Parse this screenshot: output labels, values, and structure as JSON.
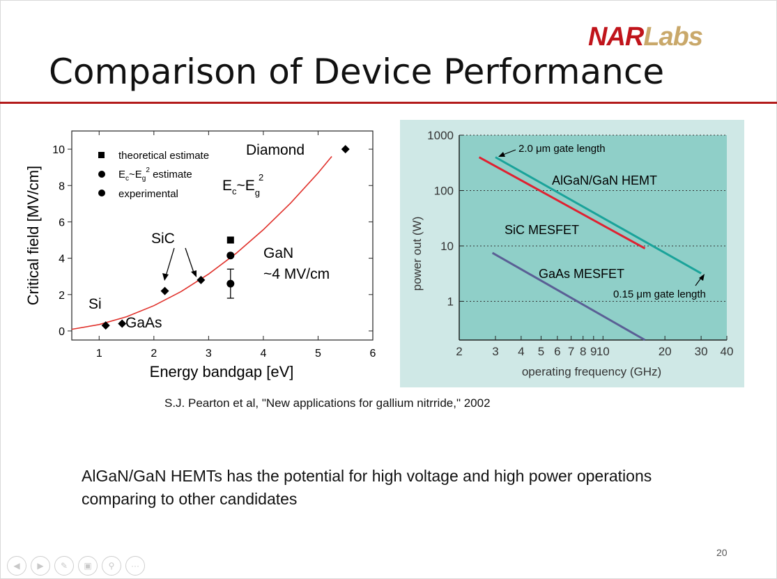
{
  "logo": {
    "part1": "NAR",
    "part2": "Labs"
  },
  "title": "Comparison of Device Performance",
  "citation": "S.J. Pearton et al, \"New applications for gallium nitrride,\" 2002",
  "body_text": "AlGaN/GaN HEMTs has the potential for high voltage and high power operations comparing to other candidates",
  "page_number": "20",
  "colors": {
    "brand_red": "#c0141b",
    "brand_gold": "#c9a86a",
    "rule": "#b31b1b",
    "right_bg": "#cfe8e6"
  },
  "nav_icons": [
    "back-icon",
    "forward-icon",
    "pen-icon",
    "slides-icon",
    "zoom-icon",
    "more-icon"
  ],
  "chart_data": [
    {
      "type": "scatter",
      "xlabel": "Energy bandgap [eV]",
      "ylabel": "Critical field [MV/cm]",
      "xlim": [
        0.5,
        6
      ],
      "ylim": [
        -0.5,
        11
      ],
      "xticks": [
        "1",
        "2",
        "3",
        "4",
        "5",
        "6"
      ],
      "yticks": [
        "0",
        "2",
        "4",
        "6",
        "8",
        "10"
      ],
      "points": [
        {
          "material": "Si",
          "x": 1.12,
          "y": 0.3,
          "marker": "diamond"
        },
        {
          "material": "GaAs",
          "x": 1.42,
          "y": 0.4,
          "marker": "diamond"
        },
        {
          "material": "SiC",
          "x": 2.2,
          "y": 2.2,
          "marker": "diamond"
        },
        {
          "material": "SiC",
          "x": 2.86,
          "y": 2.8,
          "marker": "diamond"
        },
        {
          "material": "GaN",
          "x": 3.4,
          "y": 5.0,
          "marker": "square"
        },
        {
          "material": "GaN",
          "x": 3.4,
          "y": 4.15,
          "marker": "circle"
        },
        {
          "material": "GaN",
          "x": 3.4,
          "y": 2.6,
          "marker": "circle",
          "err_low": 1.8,
          "err_high": 3.4
        },
        {
          "material": "Diamond",
          "x": 5.5,
          "y": 10.0,
          "marker": "diamond"
        }
      ],
      "fit_curve": {
        "label": "E_c~E_g^2",
        "x": [
          0.5,
          1,
          1.5,
          2,
          2.5,
          3,
          3.5,
          4,
          4.5,
          5,
          5.25
        ],
        "y": [
          0.09,
          0.35,
          0.78,
          1.39,
          2.17,
          3.13,
          4.26,
          5.57,
          7.04,
          8.69,
          9.6
        ]
      },
      "legend": [
        {
          "marker": "square",
          "label": "theoretical estimate"
        },
        {
          "marker": "circle",
          "label": "Ec~Eg2 estimate"
        },
        {
          "marker": "circle",
          "label": "experimental"
        }
      ],
      "labels": {
        "si": "Si",
        "gaas": "GaAs",
        "sic": "SiC",
        "gan": "GaN",
        "gan_value": "~4 MV/cm",
        "diamond": "Diamond",
        "eq_e": "E",
        "eq_sub1": "c",
        "eq_tilde": "~E",
        "eq_sub2": "g",
        "eq_sup": "2"
      },
      "legend_text": {
        "l1": "theoretical estimate",
        "l2_a": "E",
        "l2_b": "c",
        "l2_c": "~E",
        "l2_d": "g",
        "l2_e": "2",
        "l2_f": " estimate",
        "l3": "experimental"
      }
    },
    {
      "type": "line",
      "xscale": "log",
      "yscale": "log",
      "xlabel": "operating frequency (GHz)",
      "ylabel": "power out (W)",
      "xlim": [
        2,
        40
      ],
      "ylim": [
        0.2,
        1000
      ],
      "xticks": [
        "2",
        "3",
        "4",
        "5",
        "6",
        "7",
        "8",
        "9",
        "10",
        "20",
        "30",
        "40"
      ],
      "yticks": [
        "1",
        "10",
        "100",
        "1000"
      ],
      "grid": "horizontal dotted",
      "series": [
        {
          "name": "AlGaN/GaN HEMT",
          "color": "#1aa39a",
          "x": [
            3,
            30
          ],
          "y": [
            400,
            3.2
          ]
        },
        {
          "name": "SiC MESFET",
          "color": "#e02030",
          "x": [
            2.5,
            16
          ],
          "y": [
            400,
            9
          ]
        },
        {
          "name": "GaAs MESFET",
          "color": "#5a5f95",
          "x": [
            2.9,
            16
          ],
          "y": [
            7.5,
            0.2
          ]
        }
      ],
      "annotations": {
        "gate_long": "2.0 μm gate length",
        "gate_short": "0.15 μm gate length"
      }
    }
  ]
}
